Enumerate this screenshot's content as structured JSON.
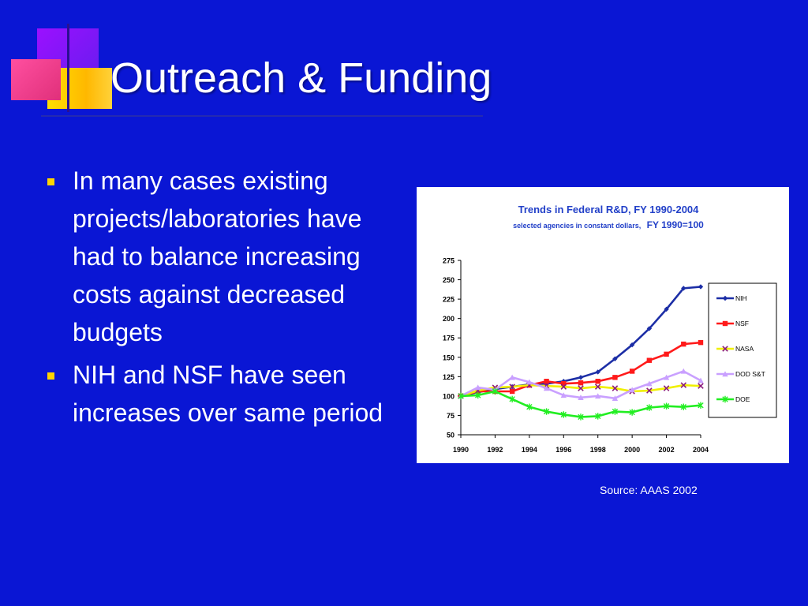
{
  "slide": {
    "title": "Outreach & Funding",
    "bullets": [
      "In many cases existing projects/laboratories have had to balance increasing costs against decreased budgets",
      "NIH and NSF have seen increases over same period"
    ],
    "source": "Source: AAAS 2002"
  },
  "colors": {
    "background": "#0a16d4",
    "text": "#ffffff",
    "bullet": "#ffd400"
  },
  "chart_data": {
    "type": "line",
    "title": "Trends in Federal R&D, FY 1990-2004",
    "subtitle_small": "selected agencies in constant dollars,",
    "subtitle_big": "FY 1990=100",
    "ylim": [
      50,
      275
    ],
    "yticks": [
      50,
      75,
      100,
      125,
      150,
      175,
      200,
      225,
      250,
      275
    ],
    "xlim": [
      1990,
      2004
    ],
    "xticks": [
      1990,
      1992,
      1994,
      1996,
      1998,
      2000,
      2002,
      2004
    ],
    "legend_position": "right",
    "grid": false,
    "x": [
      1990,
      1991,
      1992,
      1993,
      1994,
      1995,
      1996,
      1997,
      1998,
      1999,
      2000,
      2001,
      2002,
      2003,
      2004
    ],
    "series": [
      {
        "name": "NIH",
        "color": "#1c2ea6",
        "marker": "diamond",
        "values": [
          100,
          105,
          109,
          112,
          115,
          116,
          119,
          124,
          131,
          148,
          166,
          187,
          212,
          239,
          241
        ]
      },
      {
        "name": "NSF",
        "color": "#ff1a1a",
        "marker": "square",
        "values": [
          100,
          106,
          106,
          106,
          114,
          119,
          116,
          117,
          119,
          124,
          132,
          146,
          154,
          167,
          169
        ]
      },
      {
        "name": "NASA",
        "color": "#f0f000",
        "marker": "x",
        "markerColor": "#8a1a7a",
        "values": [
          100,
          107,
          111,
          112,
          114,
          113,
          112,
          110,
          112,
          110,
          106,
          107,
          110,
          114,
          113
        ]
      },
      {
        "name": "DOD S&T",
        "color": "#c9a0ff",
        "marker": "triangle",
        "values": [
          100,
          111,
          108,
          124,
          118,
          110,
          101,
          98,
          100,
          97,
          108,
          116,
          124,
          132,
          120
        ]
      },
      {
        "name": "DOE",
        "color": "#22ee22",
        "marker": "star",
        "values": [
          100,
          101,
          106,
          96,
          86,
          80,
          76,
          73,
          74,
          80,
          79,
          85,
          87,
          86,
          88
        ]
      }
    ]
  }
}
